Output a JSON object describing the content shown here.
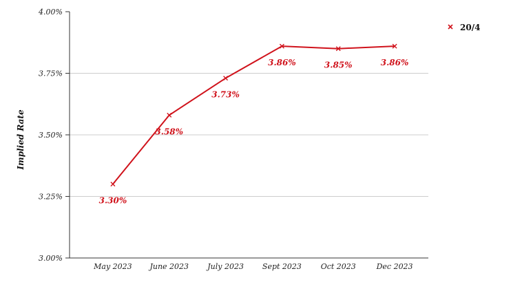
{
  "chart_data": {
    "type": "line",
    "categories": [
      "May 2023",
      "June 2023",
      "July 2023",
      "Sept 2023",
      "Oct 2023",
      "Dec 2023"
    ],
    "series": [
      {
        "name": "20/4",
        "values": [
          3.3,
          3.58,
          3.73,
          3.86,
          3.85,
          3.86
        ],
        "data_labels": [
          "3.30%",
          "3.58%",
          "3.73%",
          "3.86%",
          "3.85%",
          "3.86%"
        ],
        "color": "#d0121b"
      }
    ],
    "ylabel": "Implied Rate",
    "xlabel": "",
    "ylim": [
      3.0,
      4.0
    ],
    "yticks": [
      3.0,
      3.25,
      3.5,
      3.75,
      4.0
    ],
    "ytick_labels": [
      "3.00%",
      "3.25%",
      "3.50%",
      "3.75%",
      "4.00%"
    ],
    "grid": true,
    "legend": "top-right",
    "marker": "x"
  }
}
